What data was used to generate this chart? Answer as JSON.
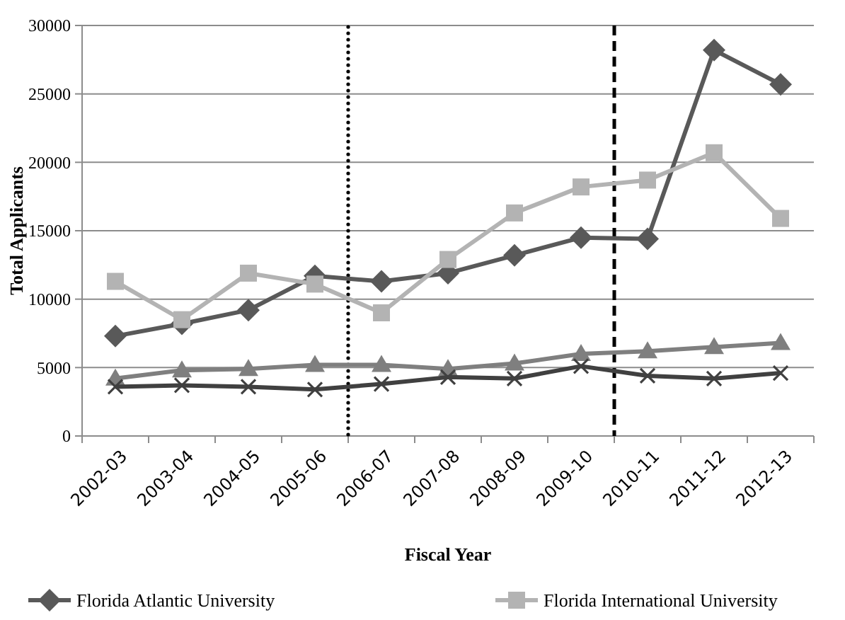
{
  "chart_data": {
    "type": "line",
    "xlabel": "Fiscal Year",
    "ylabel": "Total Applicants",
    "categories": [
      "2002-03",
      "2003-04",
      "2004-05",
      "2005-06",
      "2006-07",
      "2007-08",
      "2008-09",
      "2009-10",
      "2010-11",
      "2011-12",
      "2012-13"
    ],
    "series": [
      {
        "name": "Florida Atlantic University",
        "color": "#595959",
        "marker": "diamond",
        "values": [
          7300,
          8200,
          9200,
          11700,
          11300,
          11900,
          13200,
          14500,
          14400,
          28200,
          25700
        ]
      },
      {
        "name": "Florida International University",
        "color": "#b3b3b3",
        "marker": "square",
        "values": [
          11300,
          8500,
          11900,
          11100,
          9000,
          12900,
          16300,
          18200,
          18700,
          20700,
          15900
        ]
      },
      {
        "color": "#7f7f7f",
        "marker": "triangle",
        "values": [
          4200,
          4800,
          4900,
          5200,
          5200,
          4900,
          5300,
          6000,
          6200,
          6500,
          6800
        ]
      },
      {
        "color": "#404040",
        "marker": "cross",
        "values": [
          3600,
          3700,
          3600,
          3400,
          3800,
          4300,
          4200,
          5100,
          4400,
          4200,
          4600
        ]
      }
    ],
    "ylim": [
      0,
      30000
    ],
    "yticks": [
      0,
      5000,
      10000,
      15000,
      20000,
      25000,
      30000
    ],
    "grid": "y",
    "legend": "bottom",
    "line_style": "solid"
  }
}
